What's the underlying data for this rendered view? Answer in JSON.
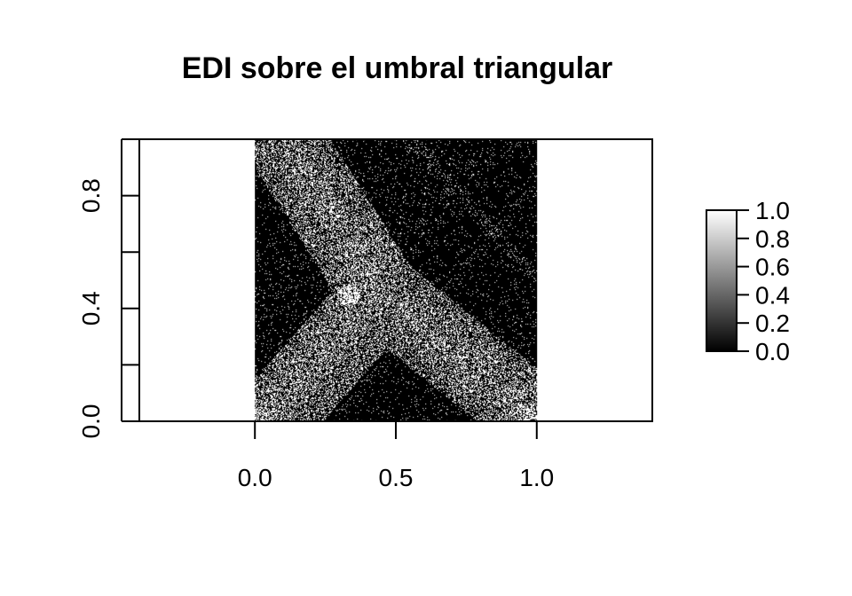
{
  "chart_data": {
    "type": "heatmap",
    "title": "EDI sobre el umbral triangular",
    "xlabel": "",
    "ylabel": "",
    "x_range": [
      -0.41,
      1.41
    ],
    "y_range": [
      0.0,
      1.0
    ],
    "image_extent": {
      "x": [
        0.0,
        1.0
      ],
      "y": [
        0.0,
        1.0
      ]
    },
    "x_ticks": [
      0.0,
      0.5,
      1.0
    ],
    "x_tick_labels": [
      "0.0",
      "0.5",
      "1.0"
    ],
    "y_ticks": [
      0.0,
      0.2,
      0.4,
      0.6,
      0.8,
      1.0
    ],
    "y_tick_labels": [
      "0.0",
      "",
      "0.4",
      "",
      "0.8",
      ""
    ],
    "colorscale": {
      "type": "grayscale",
      "low": "#000000",
      "high": "#ffffff",
      "range": [
        0.0,
        1.0
      ]
    },
    "colorbar": {
      "placement": "right",
      "ticks": [
        0.0,
        0.2,
        0.4,
        0.6,
        0.8,
        1.0
      ],
      "tick_labels": [
        "0.0",
        "0.2",
        "0.4",
        "0.6",
        "0.8",
        "1.0"
      ]
    },
    "grid": false,
    "structure": "binary speckle pattern on dark background; bright noisy band runs from top-left (x 0.0–0.2, y 1.0) down to centre (x 0.45, y 0.35), splits into a left branch ending near (0.05, 0.0) and a right branch ending near (0.98, 0.0); bright cluster near (0.33, 0.45)"
  }
}
